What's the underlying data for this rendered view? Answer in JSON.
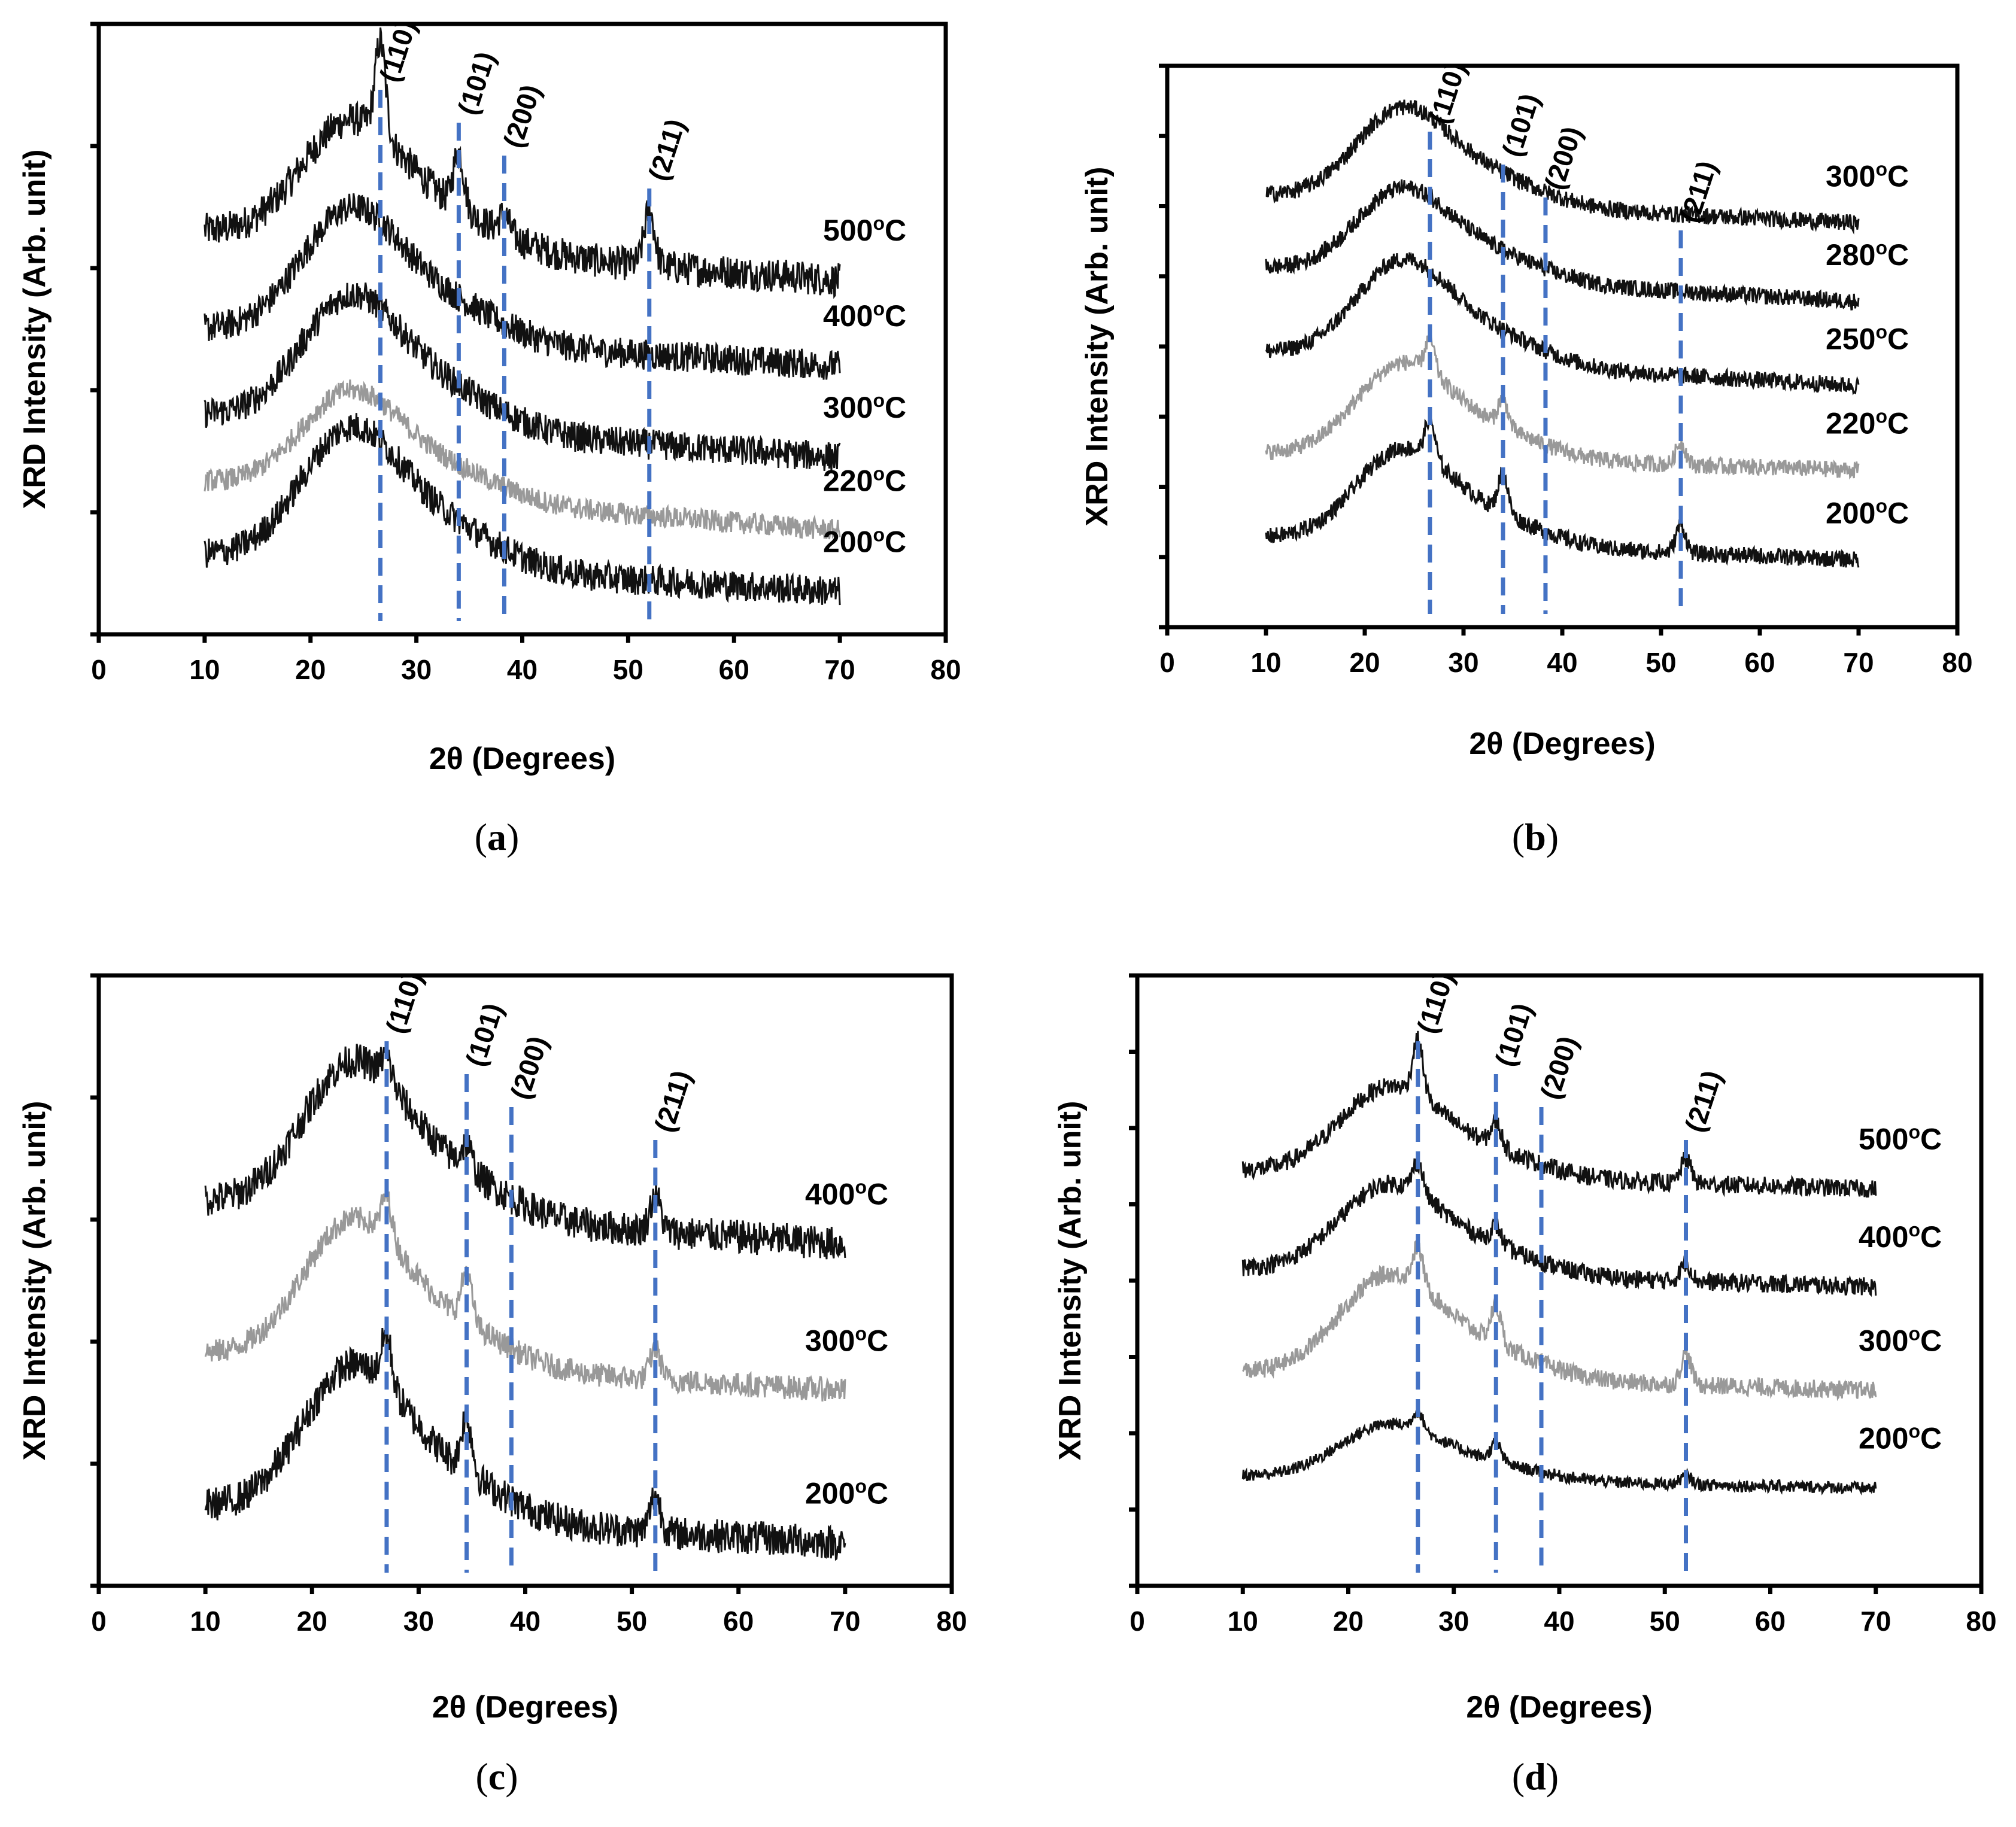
{
  "chart_data": [
    {
      "id": "a",
      "type": "line",
      "caption": "a",
      "xlabel": "2θ (Degrees)",
      "ylabel": "XRD Intensity (Arb. unit)",
      "xlim": [
        0,
        80
      ],
      "xticks": [
        "0",
        "10",
        "20",
        "30",
        "40",
        "50",
        "60",
        "70",
        "80"
      ],
      "ylim": [
        0,
        10
      ],
      "y_tick_count": 5,
      "grid": false,
      "x_range_measured": [
        10,
        70
      ],
      "reference_lines": [
        {
          "label": "(110)",
          "x": 26.6
        },
        {
          "label": "(101)",
          "x": 34.0
        },
        {
          "label": "(200)",
          "x": 38.3
        },
        {
          "label": "(211)",
          "x": 52.0
        }
      ],
      "series": [
        {
          "name": "500°C",
          "num": "500",
          "unit": "oC",
          "color": "#111111",
          "baseline": 6.6,
          "tail": 5.8,
          "hump": 1.8,
          "noise": 0.28,
          "peaks": [
            {
              "x": 26.6,
              "h": 1.5
            },
            {
              "x": 34.0,
              "h": 0.9
            },
            {
              "x": 38.3,
              "h": 0.3
            },
            {
              "x": 52.0,
              "h": 0.9
            }
          ]
        },
        {
          "name": "400°C",
          "num": "400",
          "unit": "oC",
          "color": "#111111",
          "baseline": 5.0,
          "tail": 4.4,
          "hump": 1.9,
          "noise": 0.25,
          "peaks": []
        },
        {
          "name": "300°C",
          "num": "300",
          "unit": "oC",
          "color": "#111111",
          "baseline": 3.6,
          "tail": 2.9,
          "hump": 1.9,
          "noise": 0.25,
          "peaks": []
        },
        {
          "name": "220°C",
          "num": "220",
          "unit": "oC",
          "color": "#999999",
          "baseline": 2.5,
          "tail": 1.7,
          "hump": 1.5,
          "noise": 0.18,
          "peaks": []
        },
        {
          "name": "200°C",
          "num": "200",
          "unit": "oC",
          "color": "#111111",
          "baseline": 1.3,
          "tail": 0.7,
          "hump": 2.0,
          "noise": 0.25,
          "peaks": []
        }
      ]
    },
    {
      "id": "b",
      "type": "line",
      "caption": "b",
      "xlabel": "2θ (Degrees)",
      "ylabel": "XRD Intensity (Arb. unit)",
      "xlim": [
        0,
        80
      ],
      "xticks": [
        "0",
        "10",
        "20",
        "30",
        "40",
        "50",
        "60",
        "70",
        "80"
      ],
      "ylim": [
        0,
        10
      ],
      "y_tick_count": 8,
      "grid": false,
      "x_range_measured": [
        10,
        70
      ],
      "reference_lines": [
        {
          "label": "(110)",
          "x": 26.6
        },
        {
          "label": "(101)",
          "x": 34.0
        },
        {
          "label": "(200)",
          "x": 38.3
        },
        {
          "label": "(211)",
          "x": 52.0
        }
      ],
      "series": [
        {
          "name": "300°C",
          "num": "300",
          "unit": "oC",
          "color": "#111111",
          "baseline": 7.7,
          "tail": 7.2,
          "hump": 1.5,
          "noise": 0.15,
          "peaks": []
        },
        {
          "name": "280°C",
          "num": "280",
          "unit": "oC",
          "color": "#111111",
          "baseline": 6.4,
          "tail": 5.8,
          "hump": 1.4,
          "noise": 0.15,
          "peaks": []
        },
        {
          "name": "250°C",
          "num": "250",
          "unit": "oC",
          "color": "#111111",
          "baseline": 4.9,
          "tail": 4.3,
          "hump": 1.6,
          "noise": 0.15,
          "peaks": []
        },
        {
          "name": "220°C",
          "num": "220",
          "unit": "oC",
          "color": "#999999",
          "baseline": 3.1,
          "tail": 2.8,
          "hump": 1.5,
          "noise": 0.15,
          "peaks": [
            {
              "x": 26.6,
              "h": 0.6
            },
            {
              "x": 34.0,
              "h": 0.5
            },
            {
              "x": 52.0,
              "h": 0.4
            }
          ]
        },
        {
          "name": "200°C",
          "num": "200",
          "unit": "oC",
          "color": "#111111",
          "baseline": 1.6,
          "tail": 1.2,
          "hump": 1.5,
          "noise": 0.15,
          "peaks": [
            {
              "x": 26.6,
              "h": 0.7
            },
            {
              "x": 34.0,
              "h": 0.7
            },
            {
              "x": 52.0,
              "h": 0.5
            }
          ]
        }
      ]
    },
    {
      "id": "c",
      "type": "line",
      "caption": "c",
      "xlabel": "2θ (Degrees)",
      "ylabel": "XRD Intensity (Arb. unit)",
      "xlim": [
        0,
        80
      ],
      "xticks": [
        "0",
        "10",
        "20",
        "30",
        "40",
        "50",
        "60",
        "70",
        "80"
      ],
      "ylim": [
        0,
        10
      ],
      "y_tick_count": 5,
      "grid": false,
      "x_range_measured": [
        10,
        70
      ],
      "reference_lines": [
        {
          "label": "(110)",
          "x": 27.0
        },
        {
          "label": "(101)",
          "x": 34.5
        },
        {
          "label": "(200)",
          "x": 38.7
        },
        {
          "label": "(211)",
          "x": 52.2
        }
      ],
      "series": [
        {
          "name": "400°C",
          "num": "400",
          "unit": "oC",
          "color": "#111111",
          "baseline": 6.3,
          "tail": 5.6,
          "hump": 2.2,
          "noise": 0.28,
          "peaks": [
            {
              "x": 27.0,
              "h": 0.4
            },
            {
              "x": 34.5,
              "h": 0.4
            },
            {
              "x": 52.2,
              "h": 0.6
            }
          ]
        },
        {
          "name": "300°C",
          "num": "300",
          "unit": "oC",
          "color": "#999999",
          "baseline": 3.8,
          "tail": 3.2,
          "hump": 2.1,
          "noise": 0.2,
          "peaks": [
            {
              "x": 27.0,
              "h": 0.7
            },
            {
              "x": 34.5,
              "h": 0.8
            },
            {
              "x": 52.2,
              "h": 0.5
            }
          ]
        },
        {
          "name": "200°C",
          "num": "200",
          "unit": "oC",
          "color": "#111111",
          "baseline": 1.3,
          "tail": 0.7,
          "hump": 2.2,
          "noise": 0.28,
          "peaks": [
            {
              "x": 27.0,
              "h": 0.8
            },
            {
              "x": 34.5,
              "h": 0.9
            },
            {
              "x": 52.2,
              "h": 0.6
            }
          ]
        }
      ]
    },
    {
      "id": "d",
      "type": "line",
      "caption": "d",
      "xlabel": "2θ (Degrees)",
      "ylabel": "XRD Intensity (Arb. unit)",
      "xlim": [
        0,
        80
      ],
      "xticks": [
        "0",
        "10",
        "20",
        "30",
        "40",
        "50",
        "60",
        "70",
        "80"
      ],
      "ylim": [
        0,
        10
      ],
      "y_tick_count": 8,
      "grid": false,
      "x_range_measured": [
        10,
        70
      ],
      "reference_lines": [
        {
          "label": "(110)",
          "x": 26.6
        },
        {
          "label": "(101)",
          "x": 34.0
        },
        {
          "label": "(200)",
          "x": 38.3
        },
        {
          "label": "(211)",
          "x": 52.0
        }
      ],
      "series": [
        {
          "name": "500°C",
          "num": "500",
          "unit": "oC",
          "color": "#111111",
          "baseline": 6.8,
          "tail": 6.5,
          "hump": 1.3,
          "noise": 0.15,
          "peaks": [
            {
              "x": 26.6,
              "h": 0.9
            },
            {
              "x": 34.0,
              "h": 0.4
            },
            {
              "x": 52.0,
              "h": 0.4
            }
          ]
        },
        {
          "name": "400°C",
          "num": "400",
          "unit": "oC",
          "color": "#111111",
          "baseline": 5.2,
          "tail": 4.9,
          "hump": 1.3,
          "noise": 0.15,
          "peaks": [
            {
              "x": 26.6,
              "h": 0.5
            },
            {
              "x": 34.0,
              "h": 0.3
            },
            {
              "x": 52.0,
              "h": 0.3
            }
          ]
        },
        {
          "name": "300°C",
          "num": "300",
          "unit": "oC",
          "color": "#999999",
          "baseline": 3.5,
          "tail": 3.2,
          "hump": 1.5,
          "noise": 0.15,
          "peaks": [
            {
              "x": 26.6,
              "h": 0.6
            },
            {
              "x": 34.0,
              "h": 0.6
            },
            {
              "x": 52.0,
              "h": 0.5
            }
          ]
        },
        {
          "name": "200°C",
          "num": "200",
          "unit": "oC",
          "color": "#111111",
          "baseline": 1.8,
          "tail": 1.6,
          "hump": 0.8,
          "noise": 0.1,
          "peaks": [
            {
              "x": 26.6,
              "h": 0.3
            },
            {
              "x": 34.0,
              "h": 0.3
            },
            {
              "x": 52.0,
              "h": 0.15
            }
          ]
        }
      ]
    }
  ],
  "colors": {
    "reference_line": "#4472c4",
    "axis": "#000000"
  }
}
